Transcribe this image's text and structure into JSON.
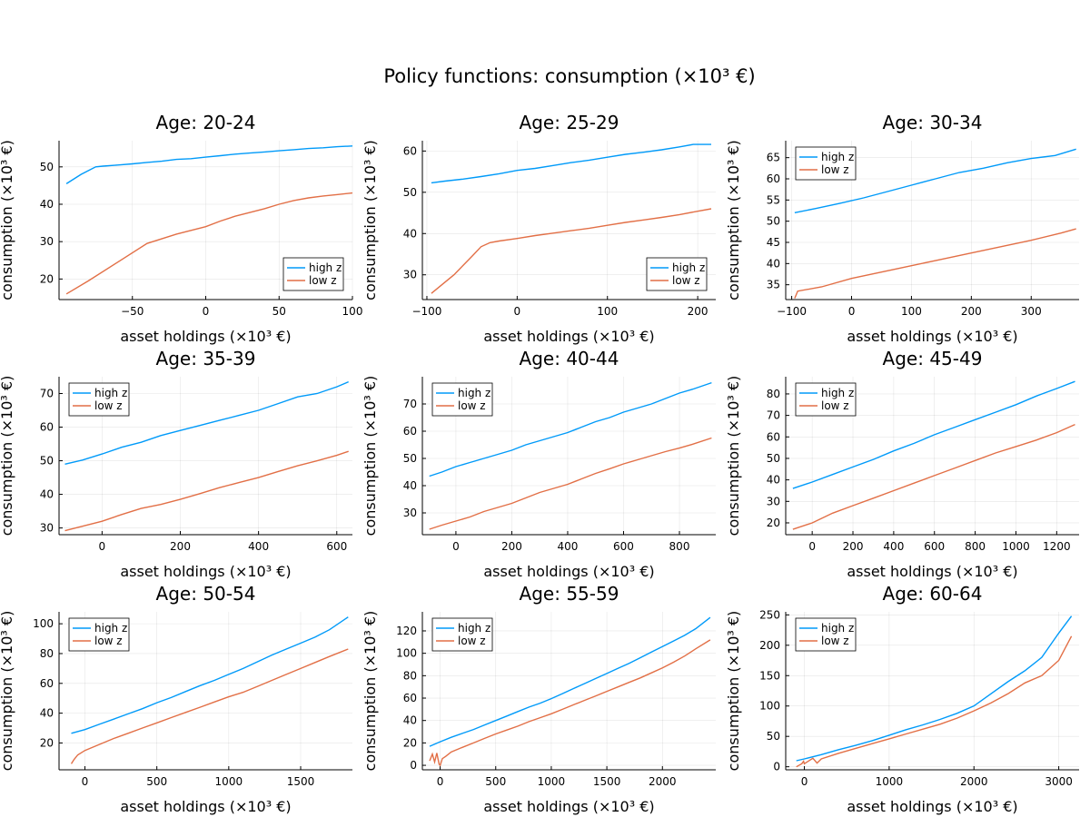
{
  "figure": {
    "title": "Policy functions: consumption (×10³ €)"
  },
  "colors": {
    "high": "#009af9",
    "low": "#e26f46"
  },
  "chart_data": [
    {
      "type": "line",
      "title": "Age: 20-24",
      "xlabel": "asset holdings (×10³ €)",
      "ylabel": "consumption (×10³ €)",
      "xlim": [
        -100,
        100
      ],
      "ylim": [
        14.5,
        57
      ],
      "xticks": [
        -50,
        0,
        50,
        100
      ],
      "yticks": [
        20,
        30,
        40,
        50
      ],
      "legend": "bottom-right",
      "series": [
        {
          "name": "high z",
          "x": [
            -95,
            -85,
            -75,
            -70,
            -60,
            -50,
            -40,
            -30,
            -20,
            -10,
            0,
            10,
            20,
            30,
            40,
            50,
            60,
            70,
            80,
            90,
            100
          ],
          "y": [
            45.5,
            48,
            50,
            50.2,
            50.5,
            50.8,
            51.2,
            51.5,
            52,
            52.2,
            52.6,
            53,
            53.4,
            53.7,
            54,
            54.3,
            54.6,
            54.9,
            55.1,
            55.4,
            55.6
          ]
        },
        {
          "name": "low z",
          "x": [
            -95,
            -80,
            -60,
            -40,
            -20,
            -10,
            0,
            10,
            20,
            30,
            40,
            50,
            60,
            70,
            80,
            90,
            100
          ],
          "y": [
            16,
            19.5,
            24.5,
            29.5,
            32,
            33,
            34,
            35.5,
            36.8,
            37.8,
            38.8,
            40,
            41,
            41.7,
            42.2,
            42.6,
            43
          ]
        }
      ]
    },
    {
      "type": "line",
      "title": "Age: 25-29",
      "xlabel": "asset holdings (×10³ €)",
      "ylabel": "consumption (×10³ €)",
      "xlim": [
        -105,
        220
      ],
      "ylim": [
        24,
        62.5
      ],
      "xticks": [
        -100,
        0,
        100,
        200
      ],
      "yticks": [
        30,
        40,
        50,
        60
      ],
      "legend": "bottom-right",
      "series": [
        {
          "name": "high z",
          "x": [
            -95,
            -80,
            -60,
            -40,
            -20,
            0,
            20,
            40,
            60,
            80,
            100,
            120,
            140,
            160,
            180,
            195,
            215
          ],
          "y": [
            52.3,
            52.7,
            53.2,
            53.8,
            54.5,
            55.3,
            55.8,
            56.5,
            57.2,
            57.8,
            58.5,
            59.2,
            59.7,
            60.3,
            61,
            61.6,
            61.6
          ]
        },
        {
          "name": "low z",
          "x": [
            -95,
            -70,
            -50,
            -40,
            -30,
            -20,
            0,
            20,
            40,
            60,
            80,
            100,
            120,
            140,
            160,
            180,
            200,
            215
          ],
          "y": [
            25.5,
            30,
            34.5,
            36.8,
            37.8,
            38.2,
            38.8,
            39.5,
            40.1,
            40.7,
            41.3,
            42,
            42.7,
            43.3,
            43.9,
            44.6,
            45.4,
            46
          ]
        }
      ]
    },
    {
      "type": "line",
      "title": "Age: 30-34",
      "xlabel": "asset holdings (×10³ €)",
      "ylabel": "consumption (×10³ €)",
      "xlim": [
        -110,
        380
      ],
      "ylim": [
        31.5,
        69
      ],
      "xticks": [
        -100,
        0,
        100,
        200,
        300
      ],
      "yticks": [
        35,
        40,
        45,
        50,
        55,
        60,
        65
      ],
      "legend": "top-left",
      "series": [
        {
          "name": "high z",
          "x": [
            -95,
            -60,
            -20,
            20,
            60,
            100,
            140,
            180,
            220,
            260,
            300,
            340,
            375
          ],
          "y": [
            52,
            53,
            54.2,
            55.5,
            57,
            58.5,
            60,
            61.5,
            62.5,
            63.8,
            64.8,
            65.5,
            67
          ]
        },
        {
          "name": "low z",
          "x": [
            -95,
            -90,
            -50,
            0,
            50,
            100,
            150,
            200,
            250,
            300,
            350,
            375
          ],
          "y": [
            31.8,
            33.5,
            34.5,
            36.5,
            38,
            39.5,
            41,
            42.5,
            44,
            45.5,
            47.2,
            48.2
          ]
        }
      ]
    },
    {
      "type": "line",
      "title": "Age: 35-39",
      "xlabel": "asset holdings (×10³ €)",
      "ylabel": "consumption (×10³ €)",
      "xlim": [
        -110,
        640
      ],
      "ylim": [
        28,
        75
      ],
      "xticks": [
        0,
        200,
        400,
        600
      ],
      "yticks": [
        30,
        40,
        50,
        60,
        70
      ],
      "legend": "top-left",
      "series": [
        {
          "name": "high z",
          "x": [
            -95,
            -50,
            0,
            50,
            100,
            150,
            200,
            250,
            300,
            350,
            400,
            450,
            500,
            550,
            600,
            630
          ],
          "y": [
            49,
            50.2,
            52,
            54,
            55.5,
            57.5,
            59,
            60.5,
            62,
            63.5,
            65,
            67,
            69,
            70,
            72,
            73.5
          ]
        },
        {
          "name": "low z",
          "x": [
            -95,
            -50,
            0,
            50,
            100,
            150,
            200,
            250,
            300,
            350,
            400,
            450,
            500,
            550,
            600,
            630
          ],
          "y": [
            29.2,
            30.5,
            32,
            34,
            35.8,
            37,
            38.5,
            40.2,
            42,
            43.5,
            45,
            46.8,
            48.5,
            50,
            51.6,
            52.8
          ]
        }
      ]
    },
    {
      "type": "line",
      "title": "Age: 40-44",
      "xlabel": "asset holdings (×10³ €)",
      "ylabel": "consumption (×10³ €)",
      "xlim": [
        -120,
        930
      ],
      "ylim": [
        22,
        80
      ],
      "xticks": [
        0,
        200,
        400,
        600,
        800
      ],
      "yticks": [
        30,
        40,
        50,
        60,
        70
      ],
      "legend": "top-left",
      "series": [
        {
          "name": "high z",
          "x": [
            -95,
            -50,
            0,
            50,
            100,
            150,
            200,
            250,
            300,
            350,
            400,
            450,
            500,
            550,
            600,
            650,
            700,
            750,
            800,
            850,
            915
          ],
          "y": [
            43.5,
            45,
            47,
            48.5,
            50,
            51.5,
            53,
            55,
            56.5,
            58,
            59.5,
            61.5,
            63.5,
            65,
            67,
            68.5,
            70,
            72,
            74,
            75.5,
            77.8
          ]
        },
        {
          "name": "low z",
          "x": [
            -95,
            -50,
            0,
            50,
            100,
            150,
            200,
            250,
            300,
            350,
            400,
            450,
            500,
            550,
            600,
            650,
            700,
            750,
            800,
            850,
            915
          ],
          "y": [
            24,
            25.5,
            27,
            28.5,
            30.5,
            32,
            33.5,
            35.5,
            37.5,
            39,
            40.5,
            42.5,
            44.5,
            46.2,
            48,
            49.5,
            51,
            52.5,
            53.8,
            55.3,
            57.5
          ]
        }
      ]
    },
    {
      "type": "line",
      "title": "Age: 45-49",
      "xlabel": "asset holdings (×10³ €)",
      "ylabel": "consumption (×10³ €)",
      "xlim": [
        -130,
        1310
      ],
      "ylim": [
        14.5,
        88
      ],
      "xticks": [
        0,
        200,
        400,
        600,
        800,
        1000,
        1200
      ],
      "yticks": [
        20,
        30,
        40,
        50,
        60,
        70,
        80
      ],
      "legend": "top-left",
      "series": [
        {
          "name": "high z",
          "x": [
            -95,
            0,
            100,
            200,
            300,
            400,
            500,
            600,
            700,
            800,
            900,
            1000,
            1100,
            1200,
            1290
          ],
          "y": [
            36,
            39,
            42.5,
            46,
            49.5,
            53.5,
            57,
            61,
            64.5,
            68,
            71.5,
            75,
            79,
            82.5,
            85.8
          ]
        },
        {
          "name": "low z",
          "x": [
            -95,
            0,
            100,
            200,
            300,
            400,
            500,
            600,
            700,
            800,
            900,
            1000,
            1100,
            1200,
            1290
          ],
          "y": [
            17,
            20,
            24.5,
            28,
            31.5,
            35,
            38.5,
            42,
            45.5,
            49,
            52.5,
            55.5,
            58.5,
            62,
            65.8
          ]
        }
      ]
    },
    {
      "type": "line",
      "title": "Age: 50-54",
      "xlabel": "asset holdings (×10³ €)",
      "ylabel": "consumption (×10³ €)",
      "xlim": [
        -180,
        1860
      ],
      "ylim": [
        2,
        108
      ],
      "xticks": [
        0,
        500,
        1000,
        1500
      ],
      "yticks": [
        20,
        40,
        60,
        80,
        100
      ],
      "legend": "top-left",
      "series": [
        {
          "name": "high z",
          "x": [
            -95,
            0,
            100,
            200,
            300,
            400,
            500,
            600,
            700,
            800,
            900,
            1000,
            1100,
            1200,
            1300,
            1400,
            1500,
            1600,
            1700,
            1830
          ],
          "y": [
            26.5,
            29,
            32.5,
            36,
            39.5,
            43,
            47,
            50.5,
            54.5,
            58.5,
            62,
            66,
            70,
            74.5,
            79,
            83,
            87,
            91,
            96,
            104.5
          ]
        },
        {
          "name": "low z",
          "x": [
            -95,
            -75,
            -50,
            0,
            100,
            200,
            300,
            400,
            500,
            600,
            700,
            800,
            900,
            1000,
            1100,
            1200,
            1300,
            1400,
            1500,
            1600,
            1700,
            1830
          ],
          "y": [
            6,
            9,
            12,
            15,
            19,
            23,
            26.5,
            30,
            33.5,
            37,
            40.5,
            44,
            47.5,
            51,
            54,
            58,
            62,
            66,
            70,
            74,
            78,
            83
          ]
        }
      ]
    },
    {
      "type": "line",
      "title": "Age: 55-59",
      "xlabel": "asset holdings (×10³ €)",
      "ylabel": "consumption (×10³ €)",
      "xlim": [
        -160,
        2480
      ],
      "ylim": [
        -4,
        137
      ],
      "xticks": [
        0,
        500,
        1000,
        1500,
        2000
      ],
      "yticks": [
        0,
        20,
        40,
        60,
        80,
        100,
        120
      ],
      "legend": "top-left",
      "series": [
        {
          "name": "high z",
          "x": [
            -95,
            0,
            100,
            200,
            300,
            400,
            500,
            600,
            700,
            800,
            900,
            1000,
            1100,
            1200,
            1300,
            1400,
            1500,
            1600,
            1700,
            1800,
            1900,
            2000,
            2100,
            2200,
            2300,
            2430
          ],
          "y": [
            17,
            21,
            25,
            28.5,
            32,
            36,
            40,
            44,
            48,
            52,
            55.5,
            59.5,
            64,
            68.5,
            73,
            77.5,
            82,
            86.5,
            91,
            96,
            101,
            106,
            111,
            116,
            122,
            132
          ]
        },
        {
          "name": "low z",
          "x": [
            -95,
            -70,
            -50,
            -30,
            -10,
            0,
            20,
            50,
            100,
            200,
            300,
            400,
            500,
            600,
            700,
            800,
            900,
            1000,
            1100,
            1200,
            1300,
            1400,
            1500,
            1600,
            1700,
            1800,
            1900,
            2000,
            2100,
            2200,
            2300,
            2430
          ],
          "y": [
            4,
            10,
            3,
            11,
            1,
            0,
            6,
            8,
            12,
            16,
            20,
            24,
            28,
            31.5,
            35,
            39,
            42.5,
            46,
            50,
            54,
            58,
            62,
            66,
            70,
            74,
            78,
            82.5,
            87,
            92,
            97.5,
            104,
            112
          ]
        }
      ]
    },
    {
      "type": "line",
      "title": "Age: 60-64",
      "xlabel": "asset holdings (×10³ €)",
      "ylabel": "consumption (×10³ €)",
      "xlim": [
        -220,
        3240
      ],
      "ylim": [
        -5,
        255
      ],
      "xticks": [
        0,
        1000,
        2000,
        3000
      ],
      "yticks": [
        0,
        50,
        100,
        150,
        200,
        250
      ],
      "legend": "top-left",
      "series": [
        {
          "name": "high z",
          "x": [
            -95,
            0,
            200,
            400,
            600,
            800,
            1000,
            1200,
            1400,
            1600,
            1800,
            2000,
            2200,
            2400,
            2600,
            2800,
            3000,
            3150
          ],
          "y": [
            10,
            13,
            20,
            28,
            35,
            43,
            52,
            61,
            69,
            78,
            88,
            100,
            120,
            140,
            158,
            180,
            220,
            248
          ]
        },
        {
          "name": "low z",
          "x": [
            -95,
            -30,
            -10,
            0,
            100,
            150,
            200,
            400,
            600,
            800,
            1000,
            1200,
            1400,
            1600,
            1800,
            2000,
            2200,
            2400,
            2600,
            2800,
            3000,
            3150
          ],
          "y": [
            0,
            5,
            9,
            5,
            14,
            6,
            13,
            22,
            30,
            38,
            46,
            54,
            62,
            70,
            80,
            92,
            105,
            120,
            138,
            150,
            175,
            215
          ]
        }
      ]
    }
  ]
}
